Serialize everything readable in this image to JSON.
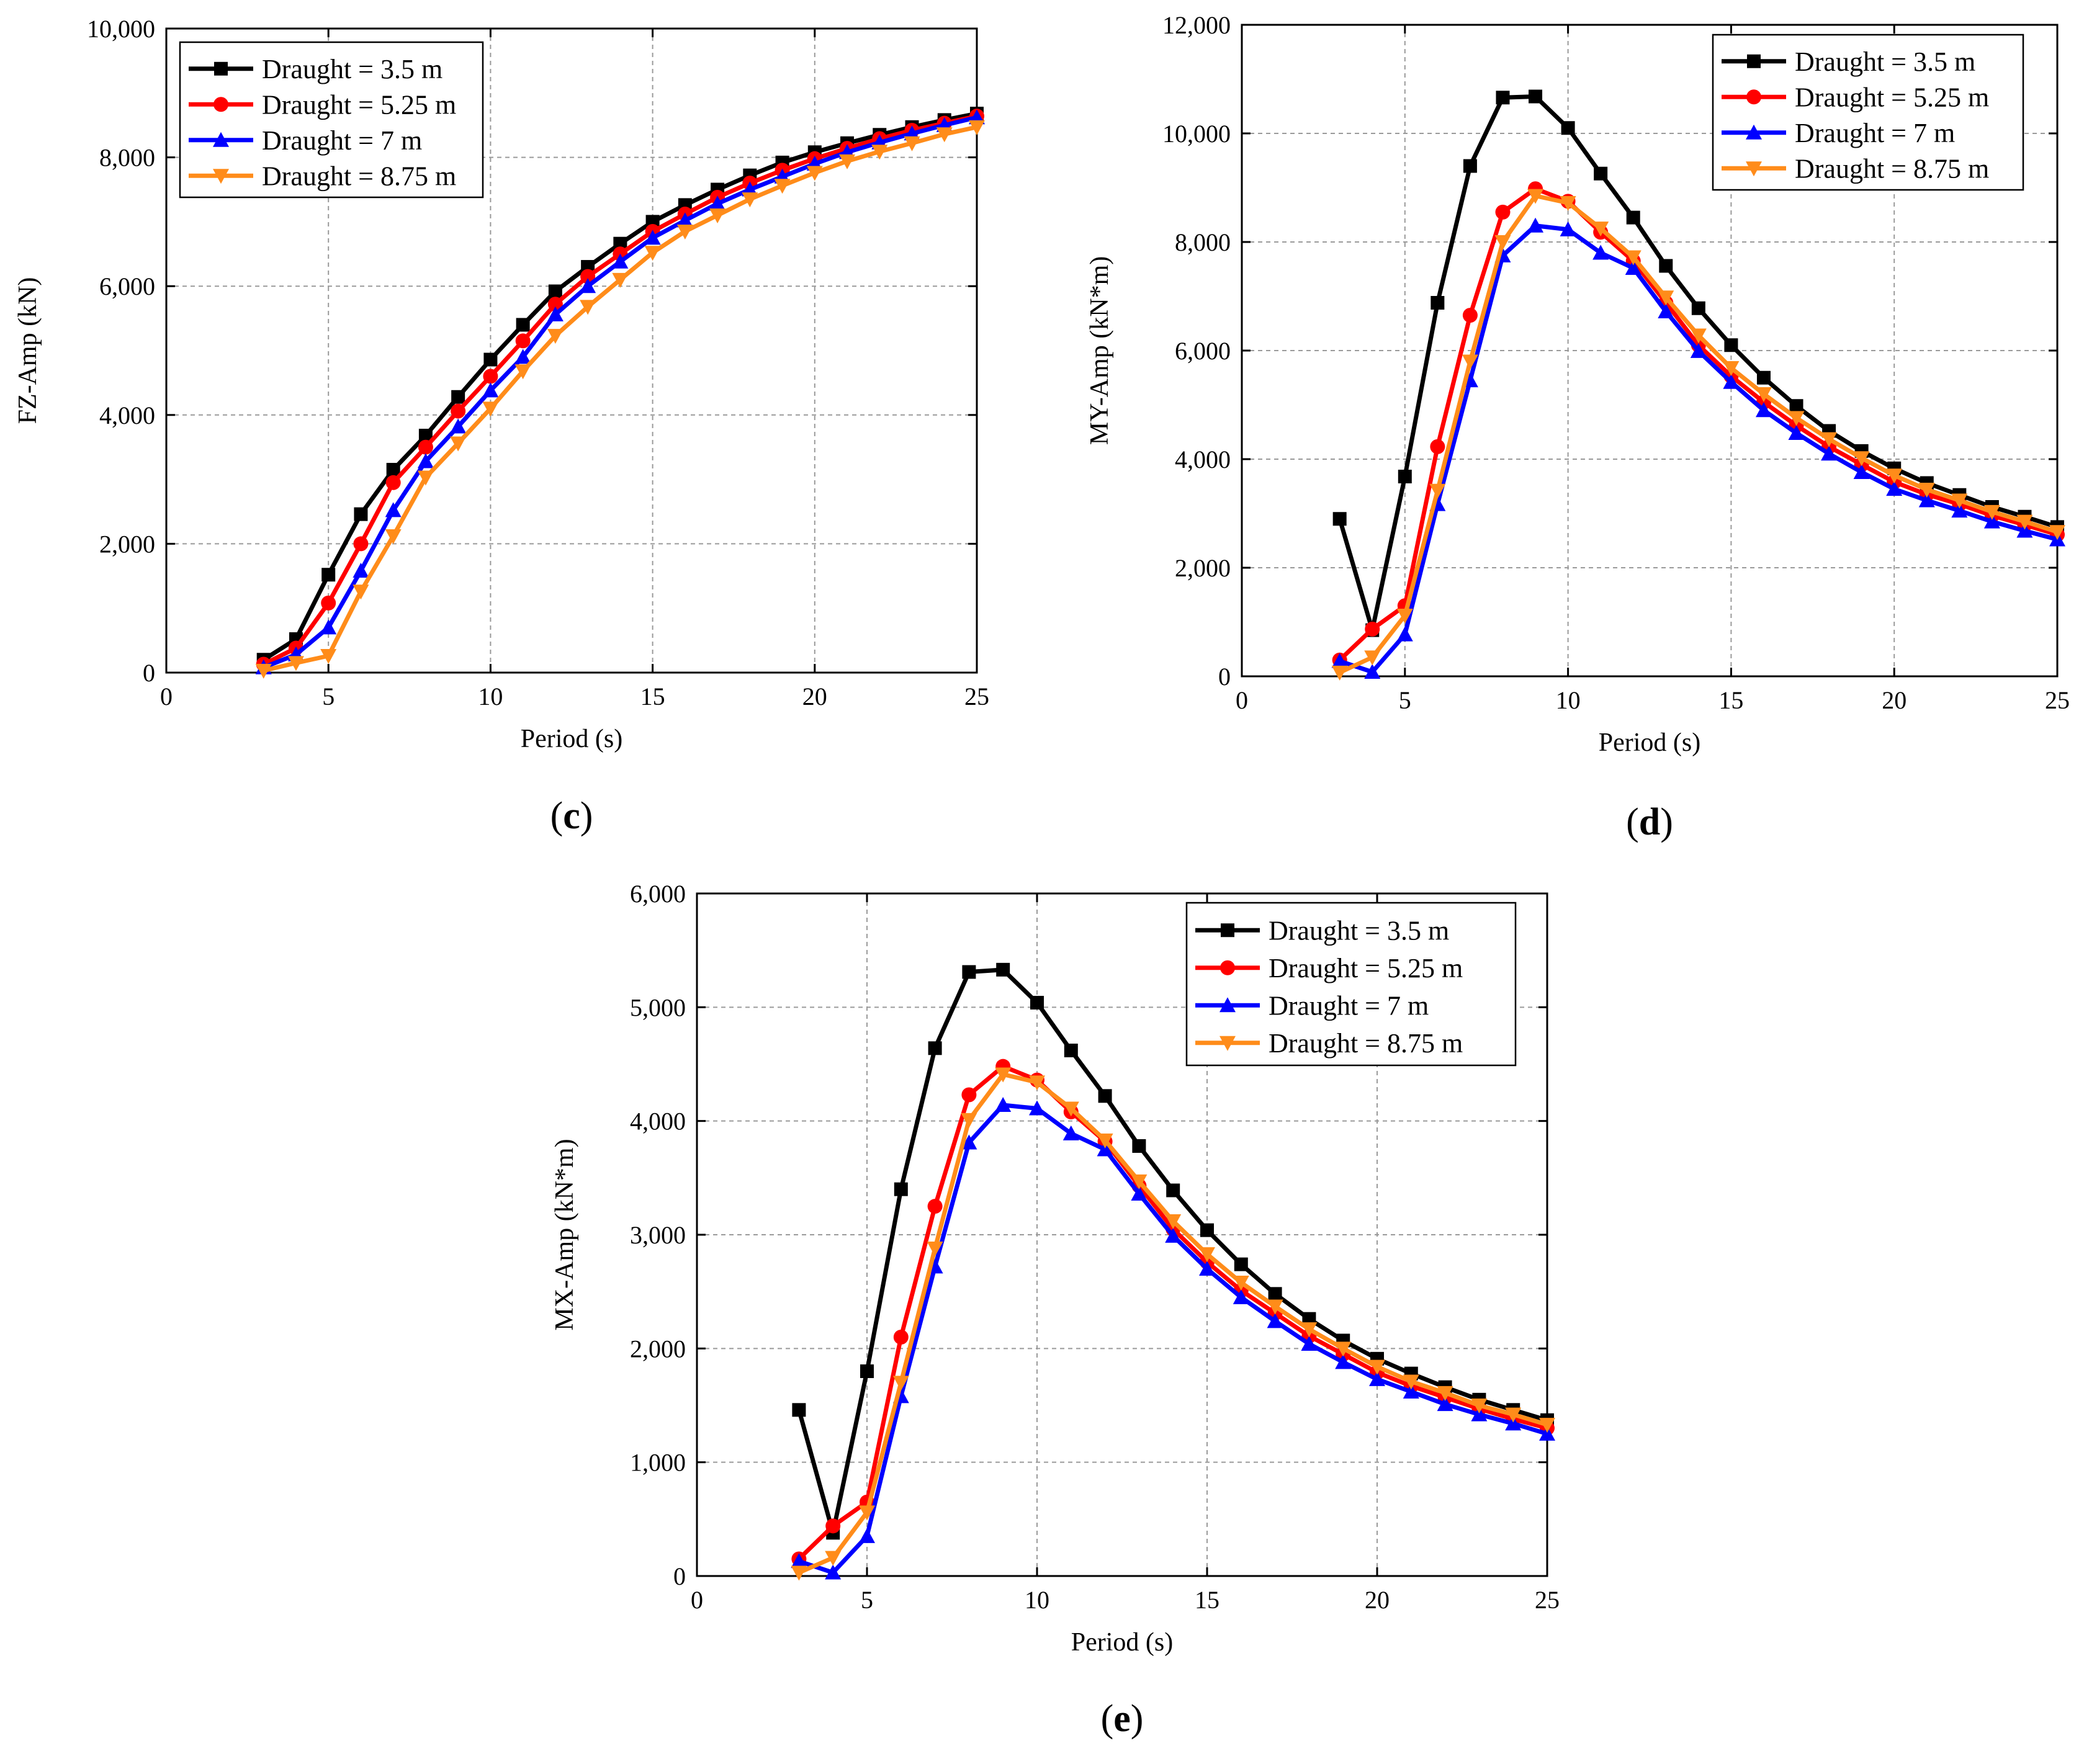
{
  "series_styles": [
    {
      "name": "Draught = 3.5 m",
      "color": "#000000",
      "marker": "square"
    },
    {
      "name": "Draught = 5.25 m",
      "color": "#ff0000",
      "marker": "circle"
    },
    {
      "name": "Draught = 7 m",
      "color": "#0000ff",
      "marker": "triangle-up"
    },
    {
      "name": "Draught = 8.75 m",
      "color": "#ff8c1a",
      "marker": "triangle-down"
    }
  ],
  "chart_data": [
    {
      "id": "c",
      "type": "line",
      "panel_label": "c",
      "xlabel": "Period (s)",
      "ylabel": "FZ-Amp (kN)",
      "xlim": [
        0,
        25
      ],
      "ylim": [
        0,
        10000
      ],
      "xticks": [
        "0",
        "5",
        "10",
        "15",
        "20",
        "25"
      ],
      "yticks": [
        "0",
        "2,000",
        "4,000",
        "6,000",
        "8,000",
        "10,000"
      ],
      "grid": true,
      "legend_position": "top-left",
      "x": [
        3,
        4,
        5,
        6,
        7,
        8,
        9,
        10,
        11,
        12,
        13,
        14,
        15,
        16,
        17,
        18,
        19,
        20,
        21,
        22,
        23,
        24,
        25
      ],
      "series": [
        {
          "name": "Draught = 3.5 m",
          "values": [
            200,
            520,
            1520,
            2460,
            3150,
            3680,
            4280,
            4860,
            5400,
            5920,
            6300,
            6660,
            7000,
            7260,
            7500,
            7720,
            7920,
            8080,
            8220,
            8350,
            8470,
            8580,
            8680
          ]
        },
        {
          "name": "Draught = 5.25 m",
          "values": [
            130,
            380,
            1080,
            2000,
            2950,
            3500,
            4060,
            4600,
            5150,
            5720,
            6150,
            6500,
            6850,
            7120,
            7380,
            7600,
            7800,
            7980,
            8140,
            8290,
            8420,
            8530,
            8640
          ]
        },
        {
          "name": "Draught = 7 m",
          "values": [
            80,
            280,
            700,
            1580,
            2520,
            3280,
            3820,
            4380,
            4900,
            5560,
            6000,
            6380,
            6750,
            7020,
            7280,
            7500,
            7700,
            7900,
            8080,
            8230,
            8370,
            8500,
            8620
          ]
        },
        {
          "name": "Draught = 8.75 m",
          "values": [
            30,
            150,
            260,
            1260,
            2120,
            3030,
            3560,
            4100,
            4680,
            5230,
            5680,
            6100,
            6520,
            6850,
            7100,
            7350,
            7560,
            7760,
            7940,
            8090,
            8220,
            8360,
            8470
          ]
        }
      ]
    },
    {
      "id": "d",
      "type": "line",
      "panel_label": "d",
      "xlabel": "Period (s)",
      "ylabel": "MY-Amp (kN*m)",
      "xlim": [
        0,
        25
      ],
      "ylim": [
        0,
        12000
      ],
      "xticks": [
        "0",
        "5",
        "10",
        "15",
        "20",
        "25"
      ],
      "yticks": [
        "0",
        "2,000",
        "4,000",
        "6,000",
        "8,000",
        "10,000",
        "12,000"
      ],
      "grid": true,
      "legend_position": "top-right",
      "x": [
        3,
        4,
        5,
        6,
        7,
        8,
        9,
        10,
        11,
        12,
        13,
        14,
        15,
        16,
        17,
        18,
        19,
        20,
        21,
        22,
        23,
        24,
        25
      ],
      "series": [
        {
          "name": "Draught = 3.5 m",
          "values": [
            2900,
            850,
            3680,
            6880,
            9400,
            10660,
            10680,
            10100,
            9260,
            8450,
            7560,
            6780,
            6100,
            5500,
            4980,
            4520,
            4150,
            3830,
            3560,
            3340,
            3120,
            2940,
            2750
          ]
        },
        {
          "name": "Draught = 5.25 m",
          "values": [
            300,
            870,
            1300,
            4230,
            6650,
            8550,
            8980,
            8750,
            8180,
            7650,
            6880,
            6100,
            5530,
            5050,
            4620,
            4230,
            3900,
            3580,
            3350,
            3170,
            2960,
            2790,
            2610
          ]
        },
        {
          "name": "Draught = 7 m",
          "values": [
            280,
            80,
            770,
            3170,
            5450,
            7750,
            8300,
            8230,
            7800,
            7520,
            6720,
            5990,
            5420,
            4900,
            4480,
            4100,
            3760,
            3450,
            3240,
            3050,
            2850,
            2680,
            2520
          ]
        },
        {
          "name": "Draught = 8.75 m",
          "values": [
            70,
            350,
            1120,
            3420,
            5800,
            8000,
            8850,
            8720,
            8250,
            7720,
            6980,
            6280,
            5680,
            5200,
            4760,
            4370,
            4020,
            3700,
            3440,
            3240,
            3030,
            2850,
            2660
          ]
        }
      ]
    },
    {
      "id": "e",
      "type": "line",
      "panel_label": "e",
      "xlabel": "Period (s)",
      "ylabel": "MX-Amp (kN*m)",
      "xlim": [
        0,
        25
      ],
      "ylim": [
        0,
        6000
      ],
      "xticks": [
        "0",
        "5",
        "10",
        "15",
        "20",
        "25"
      ],
      "yticks": [
        "0",
        "1,000",
        "2,000",
        "3,000",
        "4,000",
        "5,000",
        "6,000"
      ],
      "grid": true,
      "legend_position": "top-right",
      "x": [
        3,
        4,
        5,
        6,
        7,
        8,
        9,
        10,
        11,
        12,
        13,
        14,
        15,
        16,
        17,
        18,
        19,
        20,
        21,
        22,
        23,
        24,
        25
      ],
      "series": [
        {
          "name": "Draught = 3.5 m",
          "values": [
            1460,
            380,
            1800,
            3400,
            4640,
            5310,
            5330,
            5040,
            4620,
            4220,
            3780,
            3390,
            3040,
            2740,
            2480,
            2260,
            2070,
            1910,
            1780,
            1660,
            1550,
            1460,
            1370
          ]
        },
        {
          "name": "Draught = 5.25 m",
          "values": [
            150,
            440,
            650,
            2100,
            3250,
            4230,
            4480,
            4360,
            4080,
            3820,
            3430,
            3050,
            2760,
            2510,
            2310,
            2110,
            1950,
            1790,
            1670,
            1570,
            1470,
            1380,
            1300
          ]
        },
        {
          "name": "Draught = 7 m",
          "values": [
            130,
            30,
            350,
            1580,
            2720,
            3810,
            4140,
            4110,
            3890,
            3750,
            3360,
            2990,
            2700,
            2450,
            2240,
            2040,
            1880,
            1730,
            1620,
            1510,
            1420,
            1340,
            1250
          ]
        },
        {
          "name": "Draught = 8.75 m",
          "values": [
            30,
            160,
            560,
            1700,
            2880,
            4010,
            4410,
            4340,
            4110,
            3830,
            3470,
            3120,
            2830,
            2580,
            2370,
            2170,
            2000,
            1840,
            1710,
            1610,
            1500,
            1420,
            1330
          ]
        }
      ]
    }
  ]
}
